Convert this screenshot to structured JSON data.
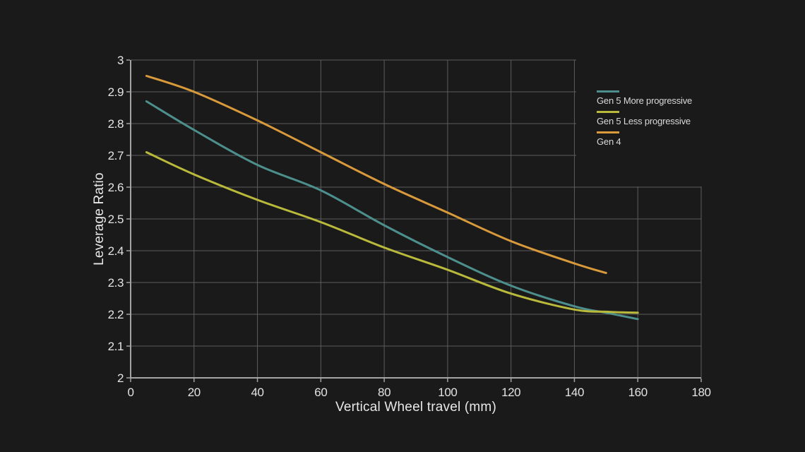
{
  "background_color": "#1a1a1a",
  "chart_data": {
    "type": "line",
    "xlabel": "Vertical Wheel travel (mm)",
    "ylabel": "Leverage Ratio",
    "xlim": [
      0,
      180
    ],
    "ylim": [
      2,
      3
    ],
    "x_tick_labels": [
      "0",
      "20",
      "40",
      "60",
      "80",
      "100",
      "120",
      "140",
      "160",
      "180"
    ],
    "y_tick_labels": [
      "3",
      "2.9",
      "2.8",
      "2.7",
      "2.6",
      "2.5",
      "2.4",
      "2.3",
      "2.2",
      "2.1",
      "2"
    ],
    "grid": true,
    "legend_position": "top-right overlay inside plot",
    "grid_color": "#5c5c5c",
    "axis_color": "#a3a3a3",
    "tick_label_color": "#e3e3e3",
    "axis_title_color": "#e8e8e8",
    "legend_text_color": "#d9d9d9",
    "series": [
      {
        "name": "Gen 5 More progressive",
        "color": "#4d8f8c",
        "x": [
          5,
          20,
          40,
          60,
          80,
          100,
          120,
          140,
          150,
          155,
          160
        ],
        "y": [
          2.87,
          2.78,
          2.67,
          2.59,
          2.48,
          2.38,
          2.29,
          2.225,
          2.205,
          2.195,
          2.185
        ]
      },
      {
        "name": "Gen 5 Less progressive",
        "color": "#b9ba3c",
        "x": [
          5,
          20,
          40,
          60,
          80,
          100,
          120,
          140,
          150,
          155,
          160
        ],
        "y": [
          2.71,
          2.64,
          2.56,
          2.49,
          2.41,
          2.34,
          2.265,
          2.215,
          2.208,
          2.206,
          2.205
        ]
      },
      {
        "name": "Gen 4",
        "color": "#d89a3a",
        "x": [
          5,
          20,
          40,
          60,
          80,
          100,
          120,
          140,
          150
        ],
        "y": [
          2.95,
          2.9,
          2.81,
          2.71,
          2.61,
          2.52,
          2.43,
          2.36,
          2.33
        ]
      }
    ]
  }
}
